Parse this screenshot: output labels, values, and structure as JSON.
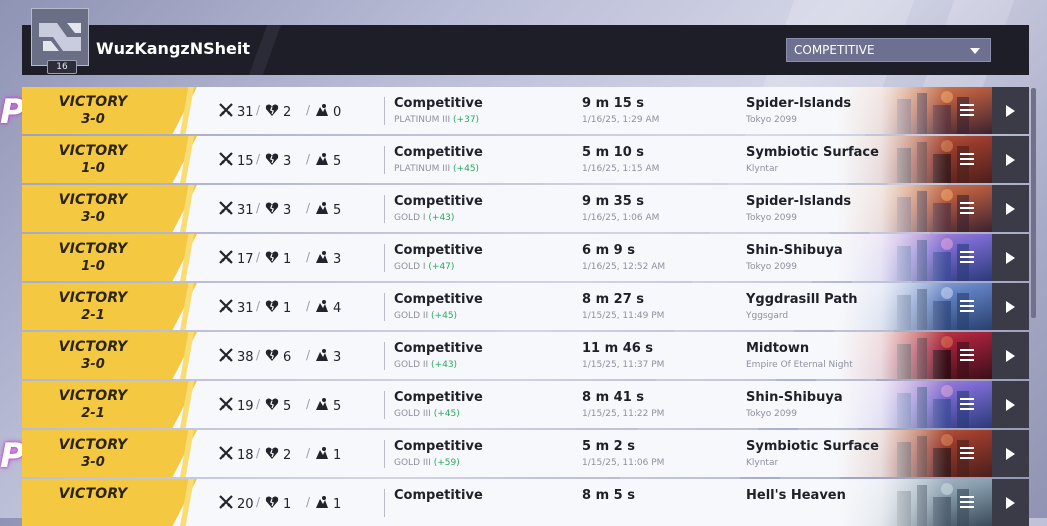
{
  "header": {
    "username": "WuzKangzNSheit",
    "level": "16",
    "mode_select": {
      "selected": "COMPETITIVE"
    }
  },
  "icons": {
    "kills": "crossed-swords-icon",
    "deaths": "broken-heart-icon",
    "assists": "assist-icon",
    "details": "list-icon",
    "play": "play-icon"
  },
  "colors": {
    "victory": "#f5c842",
    "header": "#1d1e27",
    "gain": "#2aa860"
  },
  "matches": [
    {
      "result": "VICTORY",
      "score": "3-0",
      "kills": "31",
      "deaths": "2",
      "assists": "0",
      "mode": "Competitive",
      "rank": "PLATINUM III",
      "gain": "(+37)",
      "duration": "9 m 15 s",
      "date": "1/16/25, 1:29 AM",
      "map": "Spider-Islands",
      "region": "Tokyo 2099",
      "theme": "spider"
    },
    {
      "result": "VICTORY",
      "score": "1-0",
      "kills": "15",
      "deaths": "3",
      "assists": "5",
      "mode": "Competitive",
      "rank": "PLATINUM III",
      "gain": "(+45)",
      "duration": "5 m 10 s",
      "date": "1/16/25, 1:15 AM",
      "map": "Symbiotic Surface",
      "region": "Klyntar",
      "theme": "symbiotic"
    },
    {
      "result": "VICTORY",
      "score": "3-0",
      "kills": "31",
      "deaths": "3",
      "assists": "5",
      "mode": "Competitive",
      "rank": "GOLD I",
      "gain": "(+43)",
      "duration": "9 m 35 s",
      "date": "1/16/25, 1:06 AM",
      "map": "Spider-Islands",
      "region": "Tokyo 2099",
      "theme": "spider"
    },
    {
      "result": "VICTORY",
      "score": "1-0",
      "kills": "17",
      "deaths": "1",
      "assists": "3",
      "mode": "Competitive",
      "rank": "GOLD I",
      "gain": "(+47)",
      "duration": "6 m 9 s",
      "date": "1/16/25, 12:52 AM",
      "map": "Shin-Shibuya",
      "region": "Tokyo 2099",
      "theme": "shibuya"
    },
    {
      "result": "VICTORY",
      "score": "2-1",
      "kills": "31",
      "deaths": "1",
      "assists": "4",
      "mode": "Competitive",
      "rank": "GOLD II",
      "gain": "(+45)",
      "duration": "8 m 27 s",
      "date": "1/15/25, 11:49 PM",
      "map": "Yggdrasill Path",
      "region": "Yggsgard",
      "theme": "ygg"
    },
    {
      "result": "VICTORY",
      "score": "3-0",
      "kills": "38",
      "deaths": "6",
      "assists": "3",
      "mode": "Competitive",
      "rank": "GOLD II",
      "gain": "(+43)",
      "duration": "11 m 46 s",
      "date": "1/15/25, 11:37 PM",
      "map": "Midtown",
      "region": "Empire Of Eternal Night",
      "theme": "midtown"
    },
    {
      "result": "VICTORY",
      "score": "2-1",
      "kills": "19",
      "deaths": "5",
      "assists": "5",
      "mode": "Competitive",
      "rank": "GOLD III",
      "gain": "(+45)",
      "duration": "8 m 41 s",
      "date": "1/15/25, 11:22 PM",
      "map": "Shin-Shibuya",
      "region": "Tokyo 2099",
      "theme": "shibuya"
    },
    {
      "result": "VICTORY",
      "score": "3-0",
      "kills": "18",
      "deaths": "2",
      "assists": "1",
      "mode": "Competitive",
      "rank": "GOLD III",
      "gain": "(+59)",
      "duration": "5 m 2 s",
      "date": "1/15/25, 11:06 PM",
      "map": "Symbiotic Surface",
      "region": "Klyntar",
      "theme": "symbiotic"
    },
    {
      "result": "VICTORY",
      "score": "",
      "kills": "20",
      "deaths": "1",
      "assists": "1",
      "mode": "Competitive",
      "rank": "",
      "gain": "",
      "duration": "8 m 5 s",
      "date": "",
      "map": "Hell's Heaven",
      "region": "",
      "theme": "hell"
    }
  ]
}
